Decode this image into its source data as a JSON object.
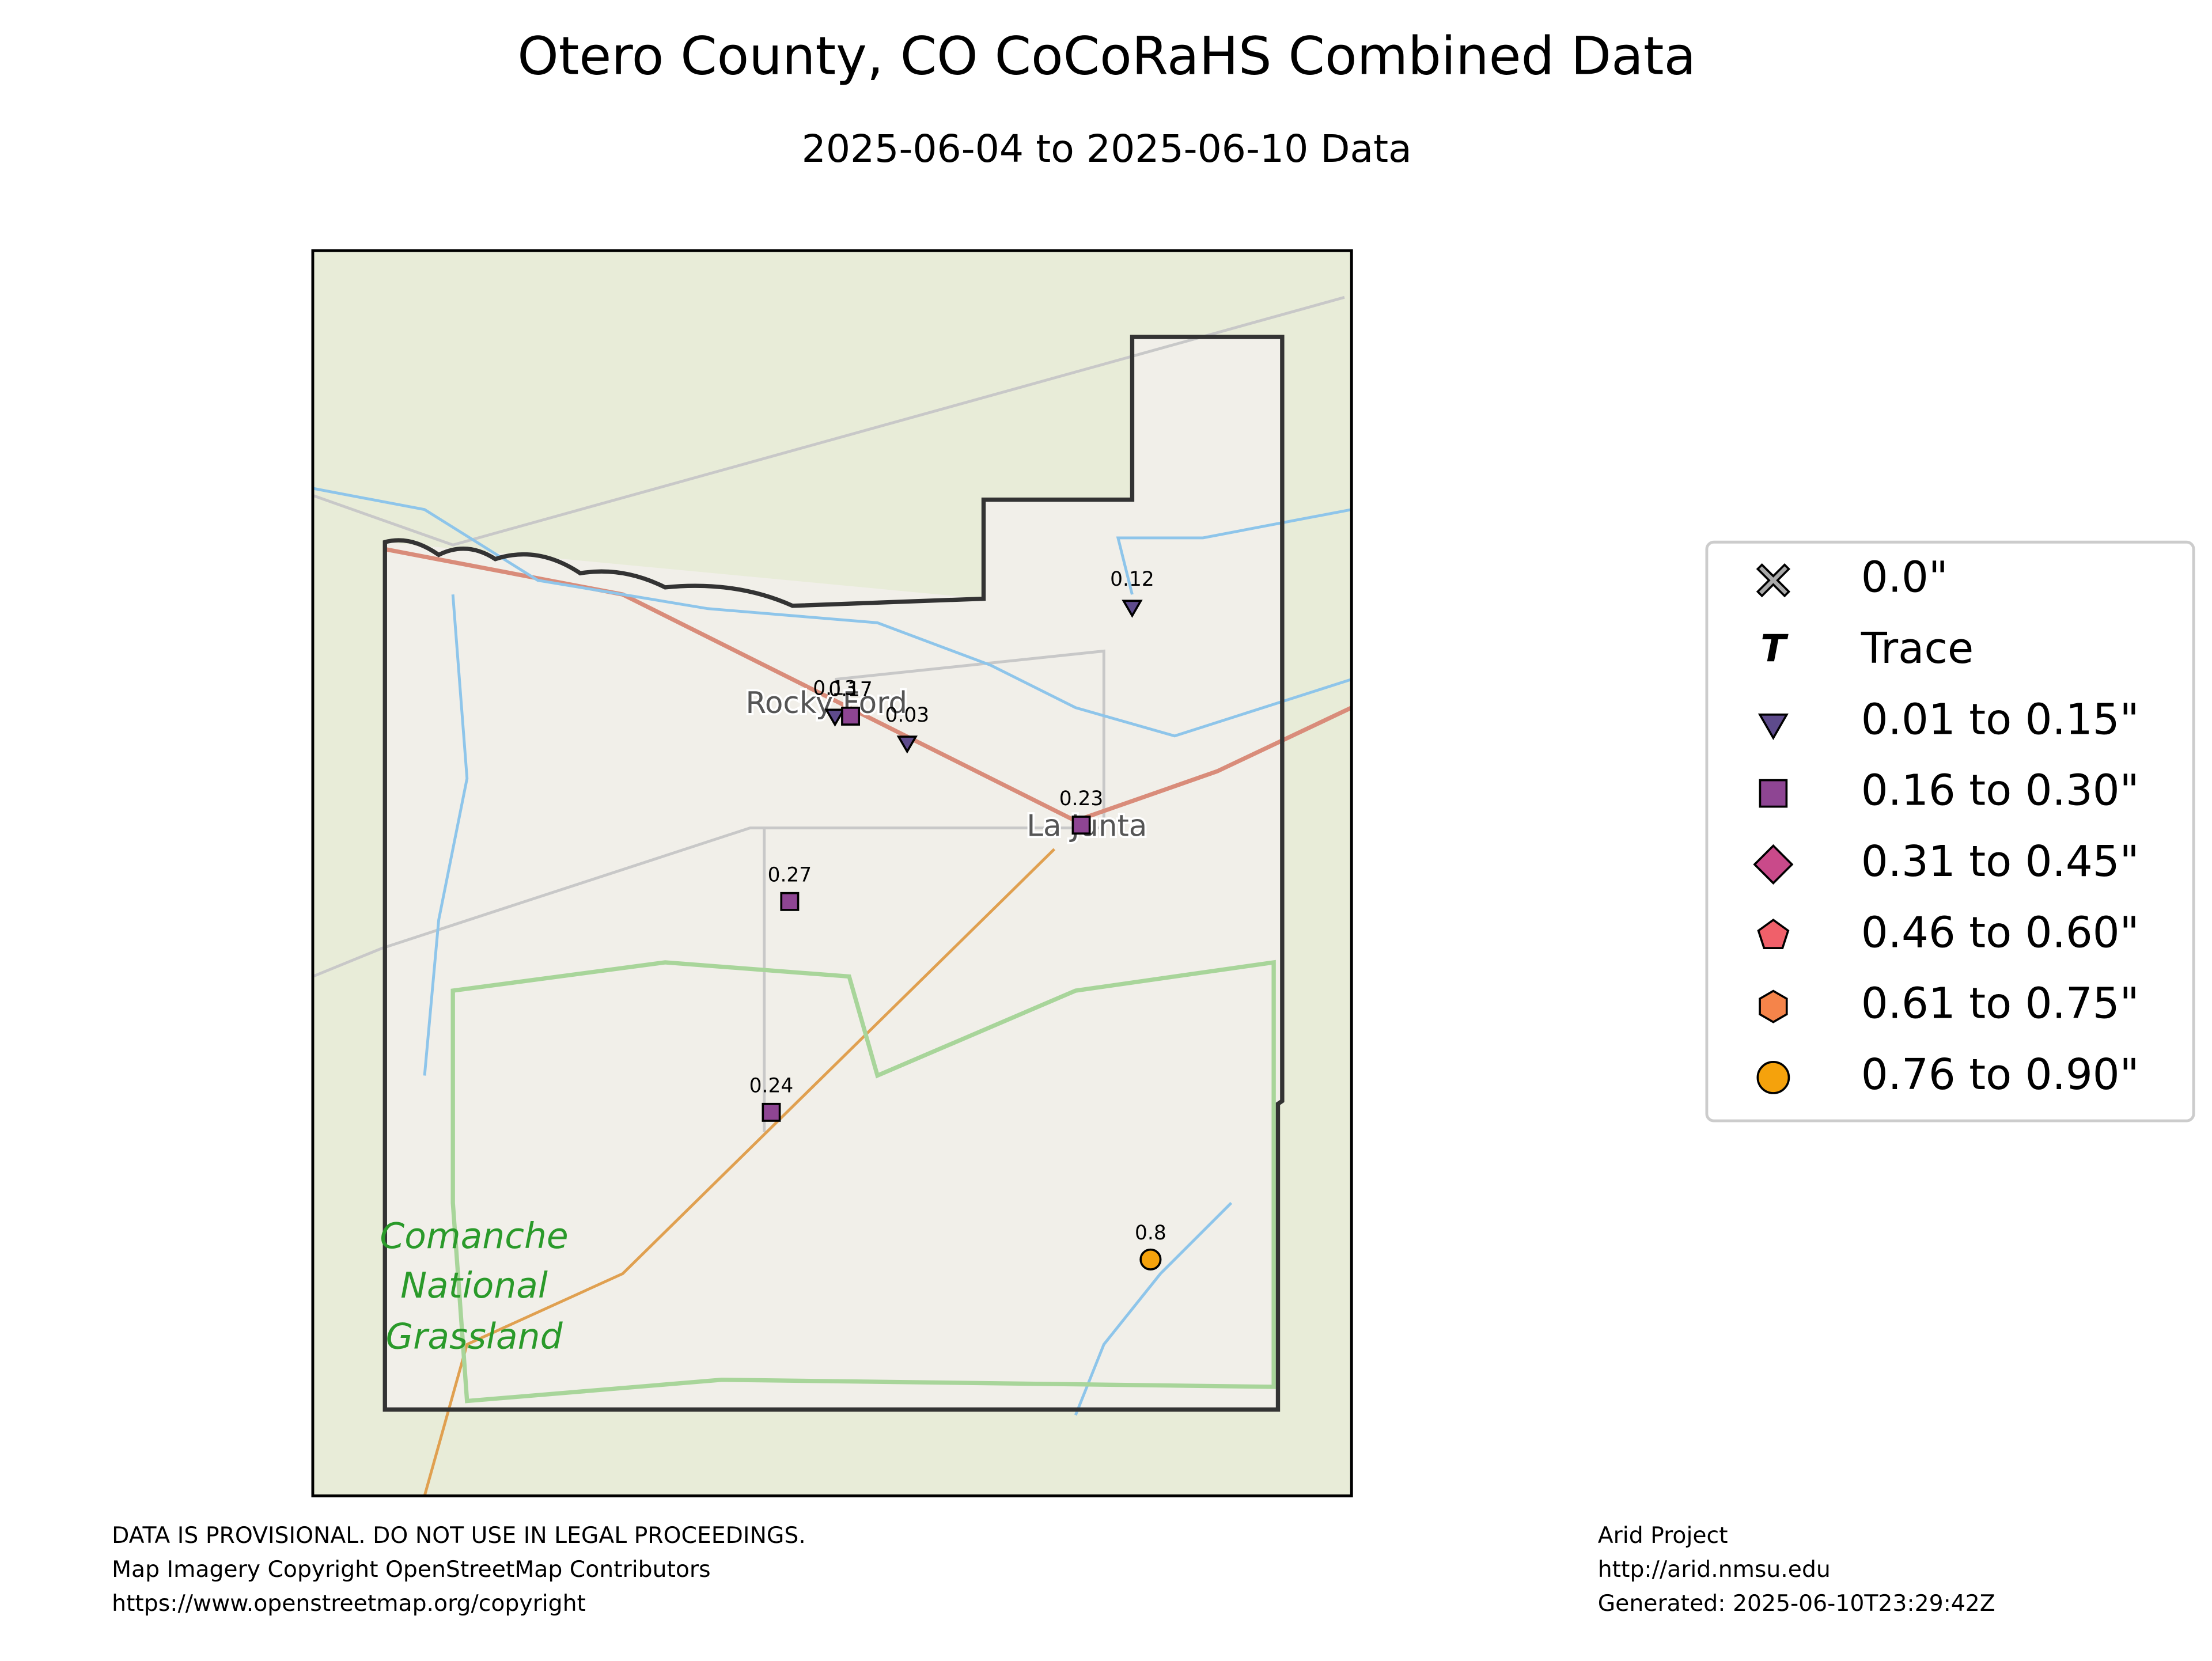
{
  "header": {
    "title": "Otero County, CO CoCoRaHS Combined Data",
    "subtitle": "2025-06-04 to 2025-06-10 Data"
  },
  "map": {
    "places": [
      "Rocky Ford",
      "La Junta",
      "Comanche",
      "National",
      "Grassland"
    ],
    "stations": [
      {
        "value": 0.12,
        "symbol": "triangle",
        "color": "#5e4b8c"
      },
      {
        "value": 0.13,
        "symbol": "triangle",
        "color": "#5e4b8c"
      },
      {
        "value": 0.17,
        "symbol": "square",
        "color": "#8e4593"
      },
      {
        "value": 0.03,
        "symbol": "triangle",
        "color": "#5e4b8c"
      },
      {
        "value": 0.23,
        "symbol": "square",
        "color": "#8e4593"
      },
      {
        "value": 0.27,
        "symbol": "square",
        "color": "#8e4593"
      },
      {
        "value": 0.24,
        "symbol": "square",
        "color": "#8e4593"
      },
      {
        "value": 0.8,
        "symbol": "circle",
        "color": "#f5a20c"
      }
    ]
  },
  "legend": [
    {
      "label": "0.0\"",
      "symbol": "cross",
      "color": "#a9a9a9"
    },
    {
      "label": "Trace",
      "symbol": "text",
      "marker": "T",
      "color": "#000000"
    },
    {
      "label": "0.01 to 0.15\"",
      "symbol": "triangle",
      "color": "#5e4b8c"
    },
    {
      "label": "0.16 to 0.30\"",
      "symbol": "square",
      "color": "#8e4593"
    },
    {
      "label": "0.31 to 0.45\"",
      "symbol": "diamond",
      "color": "#c94a8a"
    },
    {
      "label": "0.46 to 0.60\"",
      "symbol": "pentagon",
      "color": "#f0606a"
    },
    {
      "label": "0.61 to 0.75\"",
      "symbol": "hexagon",
      "color": "#f5844a"
    },
    {
      "label": "0.76 to 0.90\"",
      "symbol": "circle",
      "color": "#f5a20c"
    }
  ],
  "footer": {
    "left": [
      "DATA IS PROVISIONAL. DO NOT USE IN LEGAL PROCEEDINGS.",
      "Map Imagery Copyright OpenStreetMap Contributors",
      "https://www.openstreetmap.org/copyright"
    ],
    "right": [
      "Arid Project",
      "http://arid.nmsu.edu",
      "Generated: 2025-06-10T23:29:42Z"
    ]
  }
}
